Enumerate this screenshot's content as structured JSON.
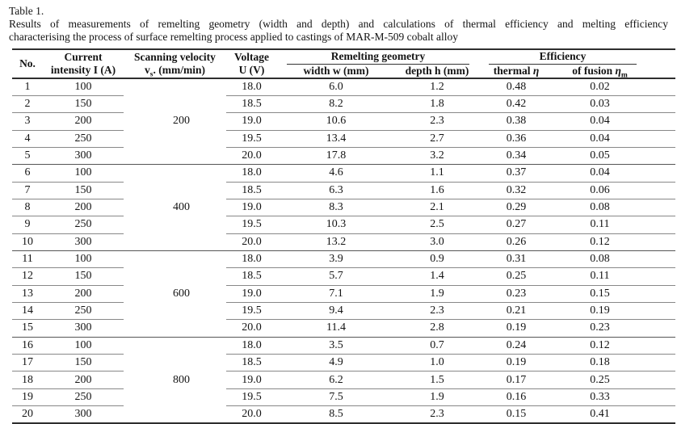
{
  "caption": {
    "label": "Table 1.",
    "line1": "Results of measurements of remelting geometry (width and depth) and calculations of thermal efficiency and melting efficiency",
    "line2": "characterising the process of surface remelting process applied to castings of MAR-M-509 cobalt alloy"
  },
  "table": {
    "header": {
      "no": "No.",
      "current_line1": "Current",
      "current_line2": "intensity I (A)",
      "scanning_line1": "Scanning velocity",
      "scanning_v": "v",
      "scanning_sub": "s",
      "scanning_rest": ". (mm/min)",
      "voltage_line1": "Voltage",
      "voltage_line2": "U (V)",
      "group_geometry": "Remelting geometry",
      "group_efficiency": "Efficiency",
      "width": "width w (mm)",
      "depth": "depth h (mm)",
      "thermal_label": "thermal ",
      "thermal_symbol": "η",
      "fusion_label": "of fusion ",
      "fusion_symbol": "η",
      "fusion_sub": "m"
    },
    "groups": [
      {
        "scanning_velocity": "200",
        "rows": [
          {
            "no": "1",
            "current": "100",
            "voltage": "18.0",
            "width": "6.0",
            "depth": "1.2",
            "thermal": "0.48",
            "fusion": "0.02"
          },
          {
            "no": "2",
            "current": "150",
            "voltage": "18.5",
            "width": "8.2",
            "depth": "1.8",
            "thermal": "0.42",
            "fusion": "0.03"
          },
          {
            "no": "3",
            "current": "200",
            "voltage": "19.0",
            "width": "10.6",
            "depth": "2.3",
            "thermal": "0.38",
            "fusion": "0.04"
          },
          {
            "no": "4",
            "current": "250",
            "voltage": "19.5",
            "width": "13.4",
            "depth": "2.7",
            "thermal": "0.36",
            "fusion": "0.04"
          },
          {
            "no": "5",
            "current": "300",
            "voltage": "20.0",
            "width": "17.8",
            "depth": "3.2",
            "thermal": "0.34",
            "fusion": "0.05"
          }
        ]
      },
      {
        "scanning_velocity": "400",
        "rows": [
          {
            "no": "6",
            "current": "100",
            "voltage": "18.0",
            "width": "4.6",
            "depth": "1.1",
            "thermal": "0.37",
            "fusion": "0.04"
          },
          {
            "no": "7",
            "current": "150",
            "voltage": "18.5",
            "width": "6.3",
            "depth": "1.6",
            "thermal": "0.32",
            "fusion": "0.06"
          },
          {
            "no": "8",
            "current": "200",
            "voltage": "19.0",
            "width": "8.3",
            "depth": "2.1",
            "thermal": "0.29",
            "fusion": "0.08"
          },
          {
            "no": "9",
            "current": "250",
            "voltage": "19.5",
            "width": "10.3",
            "depth": "2.5",
            "thermal": "0.27",
            "fusion": "0.11"
          },
          {
            "no": "10",
            "current": "300",
            "voltage": "20.0",
            "width": "13.2",
            "depth": "3.0",
            "thermal": "0.26",
            "fusion": "0.12"
          }
        ]
      },
      {
        "scanning_velocity": "600",
        "rows": [
          {
            "no": "11",
            "current": "100",
            "voltage": "18.0",
            "width": "3.9",
            "depth": "0.9",
            "thermal": "0.31",
            "fusion": "0.08"
          },
          {
            "no": "12",
            "current": "150",
            "voltage": "18.5",
            "width": "5.7",
            "depth": "1.4",
            "thermal": "0.25",
            "fusion": "0.11"
          },
          {
            "no": "13",
            "current": "200",
            "voltage": "19.0",
            "width": "7.1",
            "depth": "1.9",
            "thermal": "0.23",
            "fusion": "0.15"
          },
          {
            "no": "14",
            "current": "250",
            "voltage": "19.5",
            "width": "9.4",
            "depth": "2.3",
            "thermal": "0.21",
            "fusion": "0.19"
          },
          {
            "no": "15",
            "current": "300",
            "voltage": "20.0",
            "width": "11.4",
            "depth": "2.8",
            "thermal": "0.19",
            "fusion": "0.23"
          }
        ]
      },
      {
        "scanning_velocity": "800",
        "rows": [
          {
            "no": "16",
            "current": "100",
            "voltage": "18.0",
            "width": "3.5",
            "depth": "0.7",
            "thermal": "0.24",
            "fusion": "0.12"
          },
          {
            "no": "17",
            "current": "150",
            "voltage": "18.5",
            "width": "4.9",
            "depth": "1.0",
            "thermal": "0.19",
            "fusion": "0.18"
          },
          {
            "no": "18",
            "current": "200",
            "voltage": "19.0",
            "width": "6.2",
            "depth": "1.5",
            "thermal": "0.17",
            "fusion": "0.25"
          },
          {
            "no": "19",
            "current": "250",
            "voltage": "19.5",
            "width": "7.5",
            "depth": "1.9",
            "thermal": "0.16",
            "fusion": "0.33"
          },
          {
            "no": "20",
            "current": "300",
            "voltage": "20.0",
            "width": "8.5",
            "depth": "2.3",
            "thermal": "0.15",
            "fusion": "0.41"
          }
        ]
      }
    ]
  }
}
